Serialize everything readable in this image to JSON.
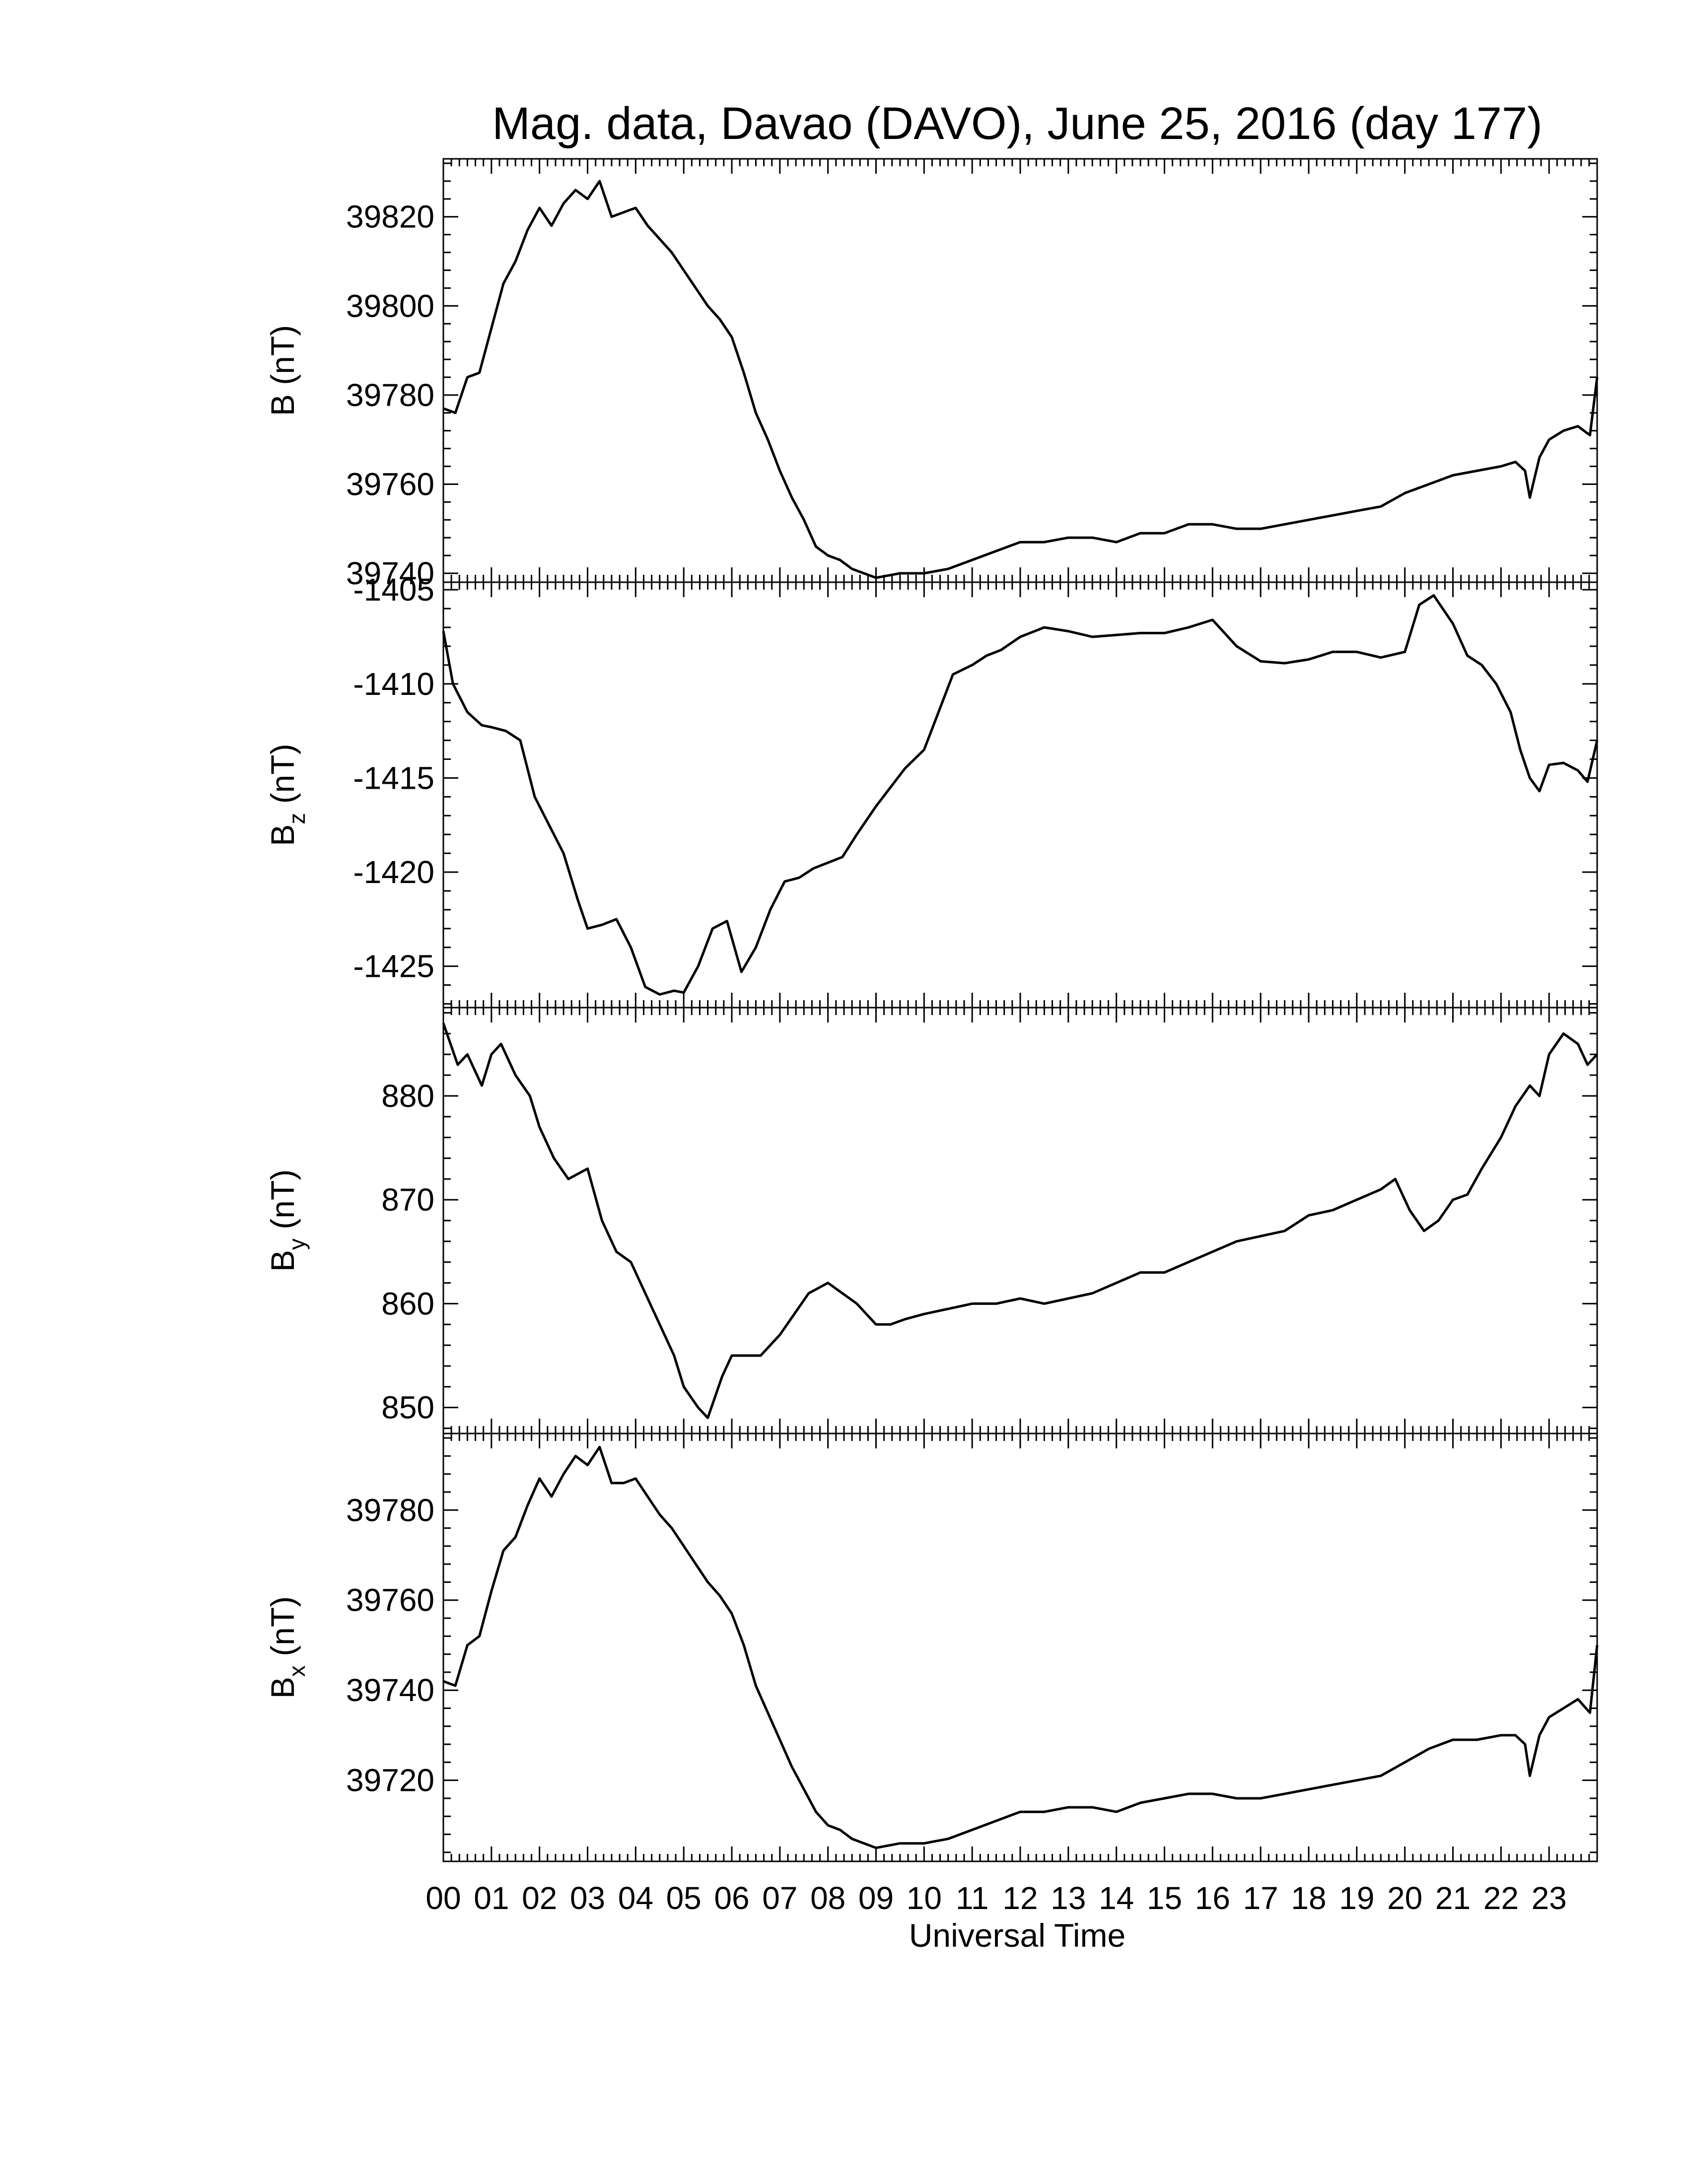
{
  "title": "Mag. data, Davao (DAVO), June 25, 2016 (day 177)",
  "xlabel": "Universal Time",
  "x_ticks": [
    "00",
    "01",
    "02",
    "03",
    "04",
    "05",
    "06",
    "07",
    "08",
    "09",
    "10",
    "11",
    "12",
    "13",
    "14",
    "15",
    "16",
    "17",
    "18",
    "19",
    "20",
    "21",
    "22",
    "23"
  ],
  "chart_data": [
    {
      "type": "line",
      "ylabel": {
        "base": "B",
        "sub": "",
        "unit": "(nT)"
      },
      "ylim": [
        39738,
        39833
      ],
      "y_ticks": [
        39740,
        39760,
        39780,
        39800,
        39820
      ],
      "xlim": [
        0,
        24
      ],
      "x": [
        0,
        0.25,
        0.5,
        0.75,
        1,
        1.25,
        1.5,
        1.75,
        2,
        2.25,
        2.5,
        2.75,
        3,
        3.25,
        3.5,
        3.75,
        4,
        4.25,
        4.5,
        4.75,
        5,
        5.25,
        5.5,
        5.75,
        6,
        6.25,
        6.5,
        6.75,
        7,
        7.25,
        7.5,
        7.75,
        8,
        8.25,
        8.5,
        9,
        9.5,
        10,
        10.5,
        11,
        11.5,
        12,
        12.5,
        13,
        13.5,
        14,
        14.5,
        15,
        15.5,
        16,
        16.5,
        17,
        17.5,
        18,
        18.5,
        19,
        19.5,
        20,
        20.5,
        21,
        21.5,
        22,
        22.3,
        22.5,
        22.6,
        22.8,
        23,
        23.3,
        23.6,
        23.85,
        24
      ],
      "y": [
        39777,
        39776,
        39784,
        39785,
        39795,
        39805,
        39810,
        39817,
        39822,
        39818,
        39823,
        39826,
        39824,
        39828,
        39820,
        39821,
        39822,
        39818,
        39815,
        39812,
        39808,
        39804,
        39800,
        39797,
        39793,
        39785,
        39776,
        39770,
        39763,
        39757,
        39752,
        39746,
        39744,
        39743,
        39741,
        39739,
        39740,
        39740,
        39741,
        39743,
        39745,
        39747,
        39747,
        39748,
        39748,
        39747,
        39749,
        39749,
        39751,
        39751,
        39750,
        39750,
        39751,
        39752,
        39753,
        39754,
        39755,
        39758,
        39760,
        39762,
        39763,
        39764,
        39765,
        39763,
        39757,
        39766,
        39770,
        39772,
        39773,
        39771,
        39784
      ]
    },
    {
      "type": "line",
      "ylabel": {
        "base": "B",
        "sub": "z",
        "unit": "(nT)"
      },
      "ylim": [
        -1427.2,
        -1404.6
      ],
      "y_ticks": [
        -1425,
        -1420,
        -1415,
        -1410,
        -1405
      ],
      "xlim": [
        0,
        24
      ],
      "x": [
        0,
        0.2,
        0.5,
        0.8,
        1,
        1.3,
        1.6,
        1.9,
        2.2,
        2.5,
        2.8,
        3,
        3.3,
        3.6,
        3.9,
        4.2,
        4.5,
        4.8,
        5,
        5.3,
        5.6,
        5.9,
        6.2,
        6.5,
        6.8,
        7.1,
        7.4,
        7.7,
        8,
        8.3,
        8.6,
        9,
        9.3,
        9.6,
        10,
        10.3,
        10.6,
        11,
        11.3,
        11.6,
        12,
        12.5,
        13,
        13.5,
        14,
        14.5,
        15,
        15.5,
        16,
        16.5,
        17,
        17.5,
        18,
        18.5,
        19,
        19.5,
        20,
        20.3,
        20.6,
        21,
        21.3,
        21.6,
        21.9,
        22.2,
        22.4,
        22.6,
        22.8,
        23,
        23.3,
        23.6,
        23.8,
        24
      ],
      "y": [
        -1407.2,
        -1410,
        -1411.5,
        -1412.2,
        -1412.3,
        -1412.5,
        -1413,
        -1416,
        -1417.5,
        -1419,
        -1421.5,
        -1423,
        -1422.8,
        -1422.5,
        -1424,
        -1426.1,
        -1426.5,
        -1426.3,
        -1426.4,
        -1425,
        -1423,
        -1422.6,
        -1425.3,
        -1424,
        -1422,
        -1420.5,
        -1420.3,
        -1419.8,
        -1419.5,
        -1419.2,
        -1418,
        -1416.5,
        -1415.5,
        -1414.5,
        -1413.5,
        -1411.5,
        -1409.5,
        -1409,
        -1408.5,
        -1408.2,
        -1407.5,
        -1407,
        -1407.2,
        -1407.5,
        -1407.4,
        -1407.3,
        -1407.3,
        -1407,
        -1406.6,
        -1408,
        -1408.8,
        -1408.9,
        -1408.7,
        -1408.3,
        -1408.3,
        -1408.6,
        -1408.3,
        -1405.8,
        -1405.3,
        -1406.8,
        -1408.5,
        -1409,
        -1410,
        -1411.5,
        -1413.5,
        -1415,
        -1415.7,
        -1414.3,
        -1414.2,
        -1414.6,
        -1415.2,
        -1413
      ]
    },
    {
      "type": "line",
      "ylabel": {
        "base": "B",
        "sub": "y",
        "unit": "(nT)"
      },
      "ylim": [
        847.5,
        888.5
      ],
      "y_ticks": [
        850,
        860,
        870,
        880
      ],
      "xlim": [
        0,
        24
      ],
      "x": [
        0,
        0.3,
        0.5,
        0.8,
        1,
        1.2,
        1.5,
        1.8,
        2,
        2.3,
        2.6,
        3,
        3.3,
        3.6,
        3.9,
        4.2,
        4.5,
        4.8,
        5,
        5.3,
        5.5,
        5.8,
        6,
        6.3,
        6.6,
        7,
        7.3,
        7.6,
        8,
        8.3,
        8.6,
        9,
        9.3,
        9.6,
        10,
        10.5,
        11,
        11.5,
        12,
        12.5,
        13,
        13.5,
        14,
        14.5,
        15,
        15.5,
        16,
        16.5,
        17,
        17.5,
        18,
        18.5,
        19,
        19.5,
        19.8,
        20.1,
        20.4,
        20.7,
        21,
        21.3,
        21.6,
        22,
        22.3,
        22.6,
        22.8,
        23,
        23.3,
        23.6,
        23.8,
        24
      ],
      "y": [
        887,
        883,
        884,
        881,
        884,
        885,
        882,
        880,
        877,
        874,
        872,
        873,
        868,
        865,
        864,
        861,
        858,
        855,
        852,
        850,
        849,
        853,
        855,
        855,
        855,
        857,
        859,
        861,
        862,
        861,
        860,
        858,
        858,
        858.5,
        859,
        859.5,
        860,
        860,
        860.5,
        860,
        860.5,
        861,
        862,
        863,
        863,
        864,
        865,
        866,
        866.5,
        867,
        868.5,
        869,
        870,
        871,
        872,
        869,
        867,
        868,
        870,
        870.5,
        873,
        876,
        879,
        881,
        880,
        884,
        886,
        885,
        883,
        884
      ]
    },
    {
      "type": "line",
      "ylabel": {
        "base": "B",
        "sub": "x",
        "unit": "(nT)"
      },
      "ylim": [
        39702,
        39797
      ],
      "y_ticks": [
        39720,
        39740,
        39760,
        39780
      ],
      "xlim": [
        0,
        24
      ],
      "x": [
        0,
        0.25,
        0.5,
        0.75,
        1,
        1.25,
        1.5,
        1.75,
        2,
        2.25,
        2.5,
        2.75,
        3,
        3.25,
        3.5,
        3.75,
        4,
        4.25,
        4.5,
        4.75,
        5,
        5.25,
        5.5,
        5.75,
        6,
        6.25,
        6.5,
        6.75,
        7,
        7.25,
        7.5,
        7.75,
        8,
        8.25,
        8.5,
        9,
        9.5,
        10,
        10.5,
        11,
        11.5,
        12,
        12.5,
        13,
        13.5,
        14,
        14.5,
        15,
        15.5,
        16,
        16.5,
        17,
        17.5,
        18,
        18.5,
        19,
        19.5,
        20,
        20.5,
        21,
        21.5,
        22,
        22.3,
        22.5,
        22.6,
        22.8,
        23,
        23.3,
        23.6,
        23.85,
        24
      ],
      "y": [
        39742,
        39741,
        39750,
        39752,
        39762,
        39771,
        39774,
        39781,
        39787,
        39783,
        39788,
        39792,
        39790,
        39794,
        39786,
        39786,
        39787,
        39783,
        39779,
        39776,
        39772,
        39768,
        39764,
        39761,
        39757,
        39750,
        39741,
        39735,
        39729,
        39723,
        39718,
        39713,
        39710,
        39709,
        39707,
        39705,
        39706,
        39706,
        39707,
        39709,
        39711,
        39713,
        39713,
        39714,
        39714,
        39713,
        39715,
        39716,
        39717,
        39717,
        39716,
        39716,
        39717,
        39718,
        39719,
        39720,
        39721,
        39724,
        39727,
        39729,
        39729,
        39730,
        39730,
        39728,
        39721,
        39730,
        39734,
        39736,
        39738,
        39735,
        39750
      ]
    }
  ]
}
